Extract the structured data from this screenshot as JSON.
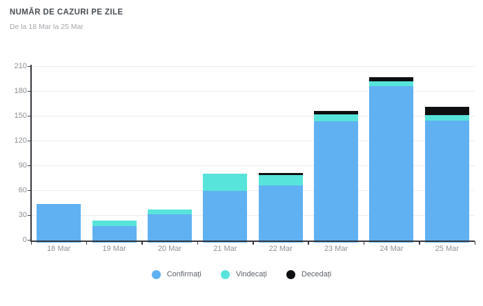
{
  "header": {
    "title": "NUMĂR DE CAZURI PE ZILE",
    "subtitle": "De la 18 Mar la 25 Mar"
  },
  "chart_data": {
    "type": "bar",
    "stacked": true,
    "title": "NUMĂR DE CAZURI PE ZILE",
    "subtitle": "De la 18 Mar la 25 Mar",
    "categories": [
      "18 Mar",
      "19 Mar",
      "20 Mar",
      "21 Mar",
      "22 Mar",
      "23 Mar",
      "24 Mar",
      "25 Mar"
    ],
    "series": [
      {
        "name": "Confirmați",
        "key": "confirmati",
        "color": "#60b1f2",
        "values": [
          43,
          17,
          31,
          59,
          66,
          143,
          186,
          144
        ]
      },
      {
        "name": "Vindecați",
        "key": "vindecati",
        "color": "#57e4da",
        "values": [
          0,
          6,
          6,
          21,
          12,
          9,
          6,
          7
        ]
      },
      {
        "name": "Decedați",
        "key": "decedati",
        "color": "#0d0f11",
        "values": [
          0,
          0,
          0,
          0,
          3,
          4,
          5,
          10
        ]
      }
    ],
    "xlabel": "",
    "ylabel": "",
    "ylim": [
      0,
      210
    ],
    "ytick_step": 30,
    "yticks": [
      0,
      30,
      60,
      90,
      120,
      150,
      180,
      210
    ],
    "grid": "horizontal",
    "legend_position": "bottom",
    "legend": [
      "Confirmați",
      "Vindecați",
      "Decedați"
    ]
  }
}
